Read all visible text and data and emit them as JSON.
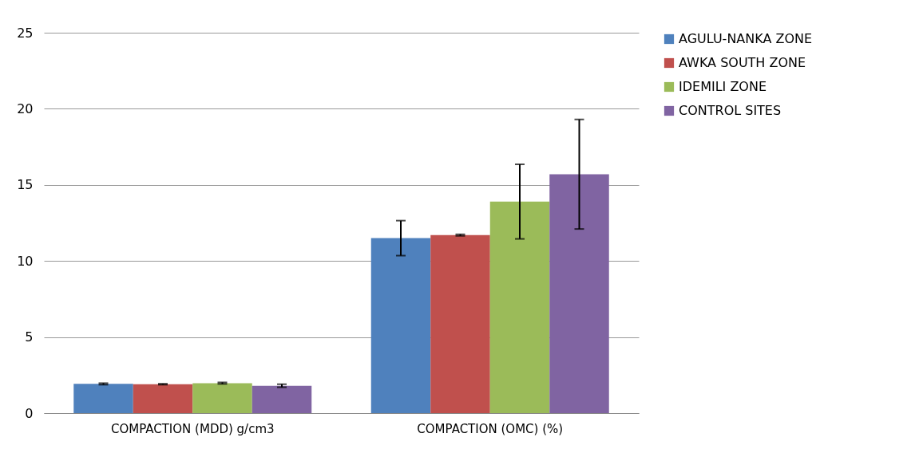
{
  "chart_data": {
    "type": "bar",
    "categories": [
      "COMPACTION (MDD) g/cm3",
      "COMPACTION (OMC) (%)"
    ],
    "series": [
      {
        "name": "AGULU-NANKA ZONE",
        "color": "#4f81bd",
        "values": [
          1.92,
          11.5
        ],
        "errors": [
          0.05,
          1.15
        ]
      },
      {
        "name": "AWKA SOUTH ZONE",
        "color": "#c0504d",
        "values": [
          1.9,
          11.7
        ],
        "errors": [
          0.03,
          0.05
        ]
      },
      {
        "name": "IDEMILI ZONE",
        "color": "#9bbb59",
        "values": [
          1.97,
          13.9
        ],
        "errors": [
          0.05,
          2.45
        ]
      },
      {
        "name": "CONTROL SITES",
        "color": "#8064a2",
        "values": [
          1.8,
          15.7
        ],
        "errors": [
          0.1,
          3.6
        ]
      }
    ],
    "ylim": [
      0,
      25
    ],
    "yticks": [
      0,
      5,
      10,
      15,
      20,
      25
    ],
    "grid": "y",
    "legend": "right"
  }
}
